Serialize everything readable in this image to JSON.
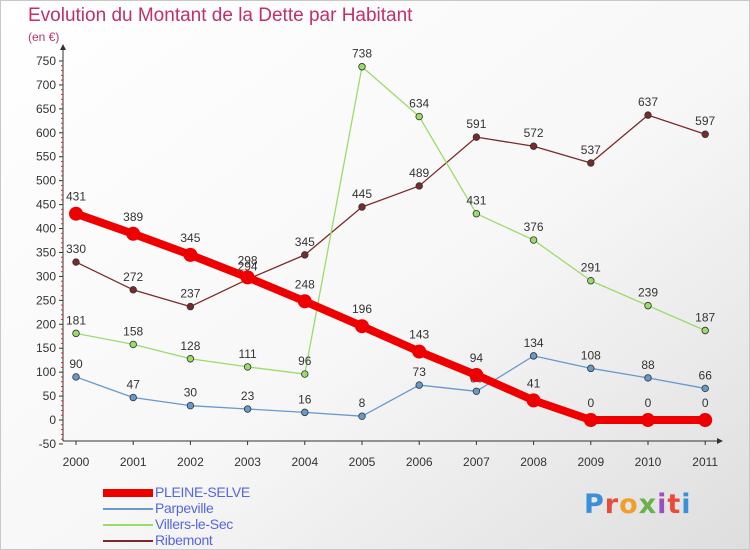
{
  "title": "Evolution du Montant de la Dette par Habitant",
  "subtitle": "(en €)",
  "logo": {
    "text": "Proxiti",
    "letter_colors": [
      "#3a8fd8",
      "#e94a3a",
      "#f0a02a",
      "#6ab04c",
      "#9a4fc0",
      "#e94a3a",
      "#3a8fd8"
    ]
  },
  "chart_data": {
    "type": "line",
    "x": [
      "2000",
      "2001",
      "2002",
      "2003",
      "2004",
      "2005",
      "2006",
      "2007",
      "2008",
      "2009",
      "2010",
      "2011"
    ],
    "ylim": [
      -50,
      750
    ],
    "y_ticks": [
      -50,
      0,
      50,
      100,
      150,
      200,
      250,
      300,
      350,
      400,
      450,
      500,
      550,
      600,
      650,
      700,
      750
    ],
    "grid": false,
    "legend_position": "bottom-left",
    "series": [
      {
        "name": "Ribemont",
        "color": "#7a2a2a",
        "values": [
          330,
          272,
          237,
          294,
          345,
          445,
          489,
          591,
          572,
          537,
          637,
          597
        ],
        "thick": false
      },
      {
        "name": "Villers-le-Sec",
        "color": "#9adc6a",
        "values": [
          181,
          158,
          128,
          111,
          96,
          738,
          634,
          431,
          376,
          291,
          239,
          187
        ],
        "thick": false
      },
      {
        "name": "Parpeville",
        "color": "#6699cc",
        "values": [
          90,
          47,
          30,
          23,
          16,
          8,
          73,
          60,
          134,
          108,
          88,
          66
        ],
        "thick": false
      },
      {
        "name": "PLEINE-SELVE",
        "color": "#ee0000",
        "values": [
          431,
          389,
          345,
          298,
          248,
          196,
          143,
          94,
          41,
          0,
          0,
          0
        ],
        "thick": true
      }
    ]
  }
}
